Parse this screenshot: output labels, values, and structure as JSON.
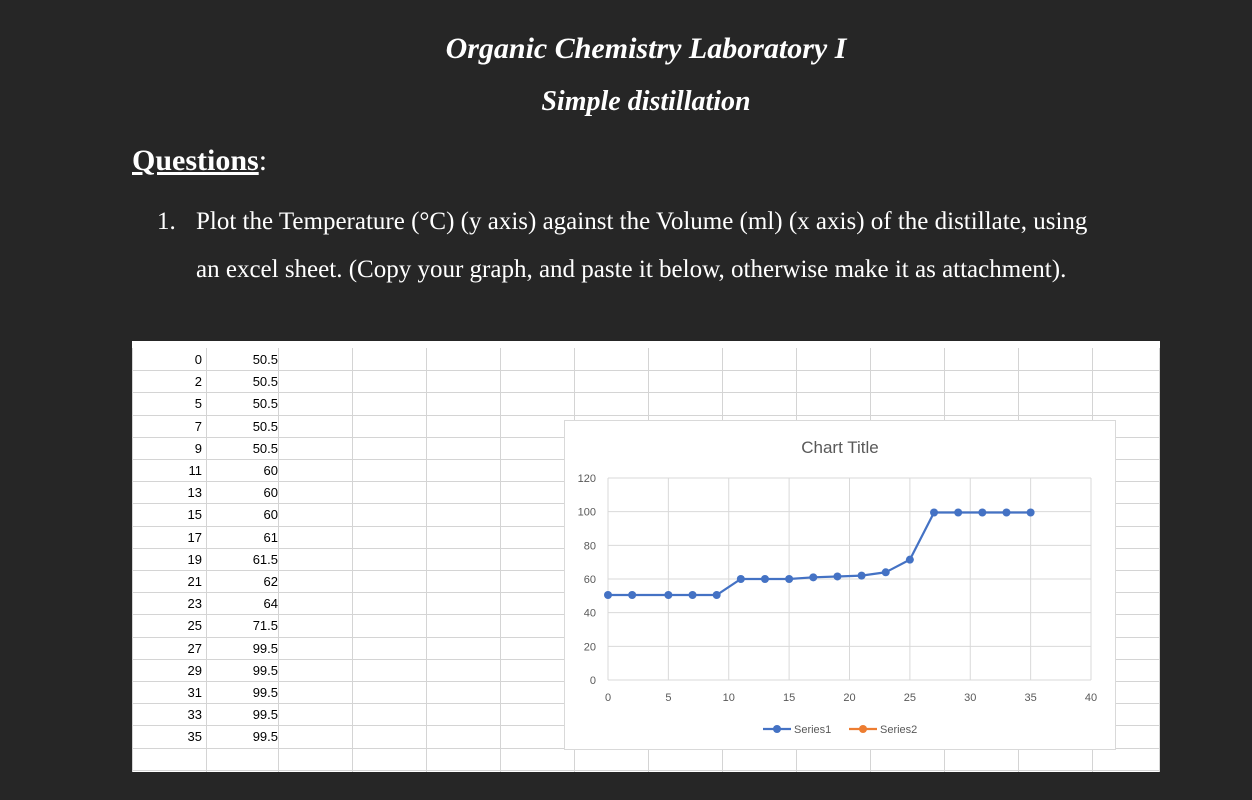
{
  "header": {
    "title": "Organic Chemistry Laboratory I",
    "subtitle": "Simple distillation"
  },
  "questions": {
    "heading": "Questions",
    "colon": ":",
    "number": "1.",
    "line1": "Plot the Temperature (°C) (y axis) against the Volume (ml) (x axis) of the distillate, using",
    "line2": "an excel sheet. (Copy your graph, and paste it below, otherwise make it as attachment)."
  },
  "sheet": {
    "rows": [
      [
        "0",
        "50.5"
      ],
      [
        "2",
        "50.5"
      ],
      [
        "5",
        "50.5"
      ],
      [
        "7",
        "50.5"
      ],
      [
        "9",
        "50.5"
      ],
      [
        "11",
        "60"
      ],
      [
        "13",
        "60"
      ],
      [
        "15",
        "60"
      ],
      [
        "17",
        "61"
      ],
      [
        "19",
        "61.5"
      ],
      [
        "21",
        "62"
      ],
      [
        "23",
        "64"
      ],
      [
        "25",
        "71.5"
      ],
      [
        "27",
        "99.5"
      ],
      [
        "29",
        "99.5"
      ],
      [
        "31",
        "99.5"
      ],
      [
        "33",
        "99.5"
      ],
      [
        "35",
        "99.5"
      ]
    ]
  },
  "chart_data": {
    "type": "line",
    "title": "Chart Title",
    "xlabel": "",
    "ylabel": "",
    "xlim": [
      0,
      40
    ],
    "ylim": [
      0,
      120
    ],
    "x_ticks": [
      "0",
      "5",
      "10",
      "15",
      "20",
      "25",
      "30",
      "35",
      "40"
    ],
    "y_ticks": [
      "0",
      "20",
      "40",
      "60",
      "80",
      "100",
      "120"
    ],
    "grid": true,
    "legend_position": "bottom",
    "series": [
      {
        "name": "Series1",
        "color": "#4472c4",
        "x": [
          0,
          2,
          5,
          7,
          9,
          11,
          13,
          15,
          17,
          19,
          21,
          23,
          25,
          27,
          29,
          31,
          33,
          35
        ],
        "y": [
          50.5,
          50.5,
          50.5,
          50.5,
          50.5,
          60,
          60,
          60,
          61,
          61.5,
          62,
          64,
          71.5,
          99.5,
          99.5,
          99.5,
          99.5,
          99.5
        ]
      },
      {
        "name": "Series2",
        "color": "#ed7d31",
        "x": [],
        "y": []
      }
    ]
  }
}
